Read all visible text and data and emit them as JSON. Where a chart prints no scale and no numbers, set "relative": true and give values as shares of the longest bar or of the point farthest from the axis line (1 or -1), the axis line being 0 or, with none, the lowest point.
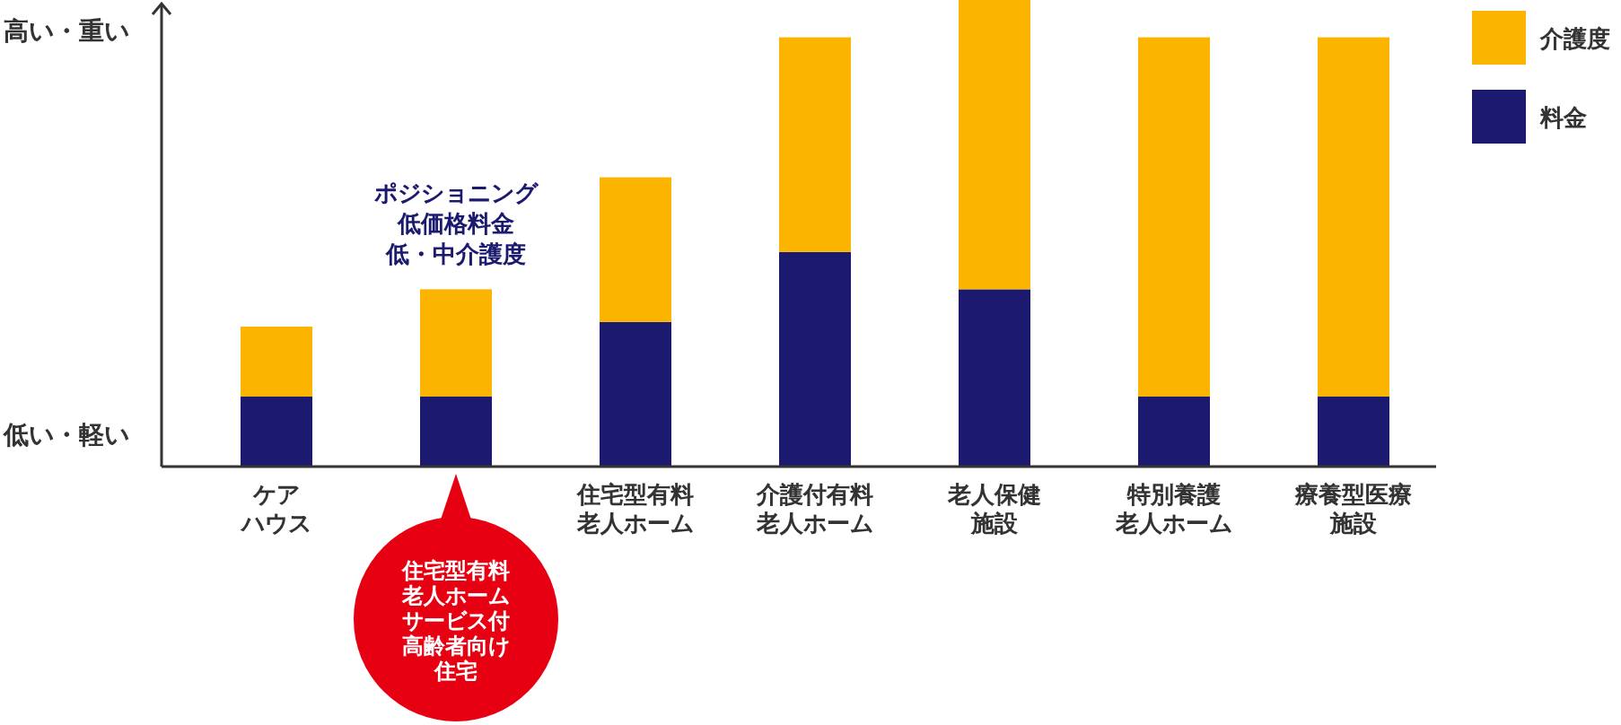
{
  "chart_data": {
    "type": "bar",
    "stacked": true,
    "relative": true,
    "legend": "top right",
    "categories": [
      "ケアハウス",
      null,
      "住宅型有料老人ホーム",
      "介護付有料老人ホーム",
      "老人保健施設",
      "特別養護老人ホーム",
      "療養型医療施設"
    ],
    "series": [
      {
        "name": "料金",
        "color": "#1b1a6e",
        "values": [
          0.15,
          0.15,
          0.31,
          0.46,
          0.38,
          0.15,
          0.15
        ]
      },
      {
        "name": "介護度",
        "color": "#fbb400",
        "values": [
          0.15,
          0.23,
          0.31,
          0.46,
          0.62,
          0.77,
          0.77
        ]
      }
    ],
    "annotations": [
      "高い・重い",
      "低い・軽い",
      "ポジショニング低価格料金低・中介護度",
      "住宅型有料老人ホームサービス付高齢者向け住宅"
    ]
  }
}
